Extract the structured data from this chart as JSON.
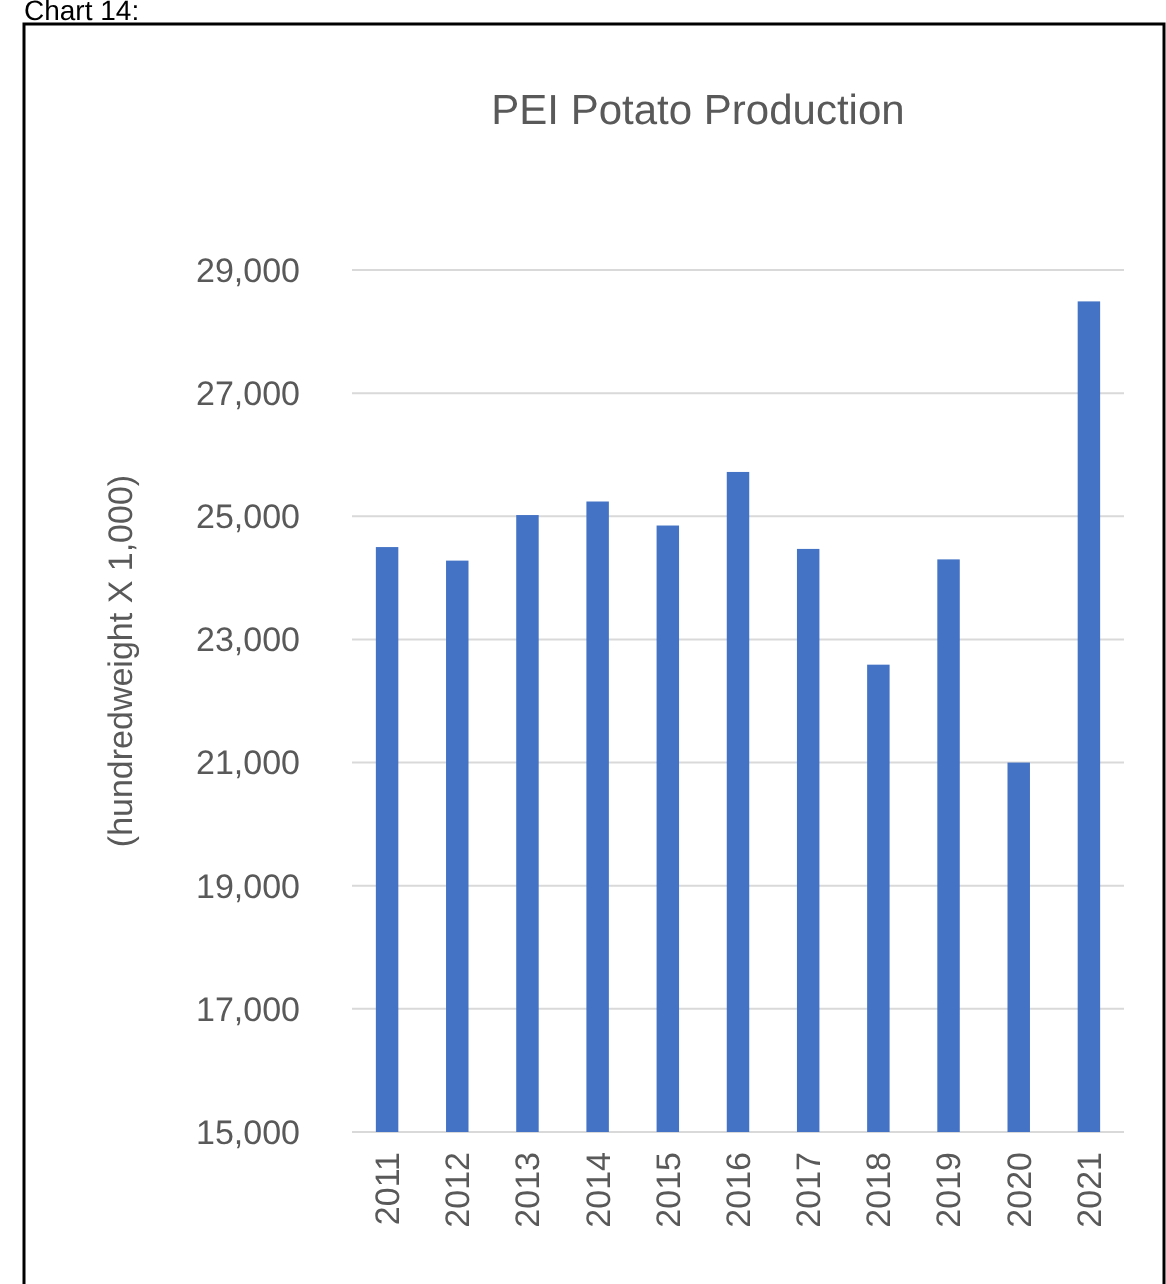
{
  "chart_data": {
    "type": "bar",
    "title": "PEI Potato Production",
    "ylabel": "(hundredweight X 1,000)",
    "annotations": [
      "Chart 14:"
    ],
    "categories": [
      "2011",
      "2012",
      "2013",
      "2014",
      "2015",
      "2016",
      "2017",
      "2018",
      "2019",
      "2020",
      "2021"
    ],
    "values": [
      24500,
      24280,
      25020,
      25240,
      24850,
      25720,
      24470,
      22590,
      24300,
      21000,
      28490
    ],
    "color": "#4472c4",
    "ylim": [
      15000,
      29000
    ],
    "yticks": [
      {
        "value": 15000,
        "label": "15,000"
      },
      {
        "value": 17000,
        "label": "17,000"
      },
      {
        "value": 19000,
        "label": "19,000"
      },
      {
        "value": 21000,
        "label": "21,000"
      },
      {
        "value": 23000,
        "label": "23,000"
      },
      {
        "value": 25000,
        "label": "25,000"
      },
      {
        "value": 27000,
        "label": "27,000"
      },
      {
        "value": 29000,
        "label": "29,000"
      }
    ],
    "grid": true
  }
}
